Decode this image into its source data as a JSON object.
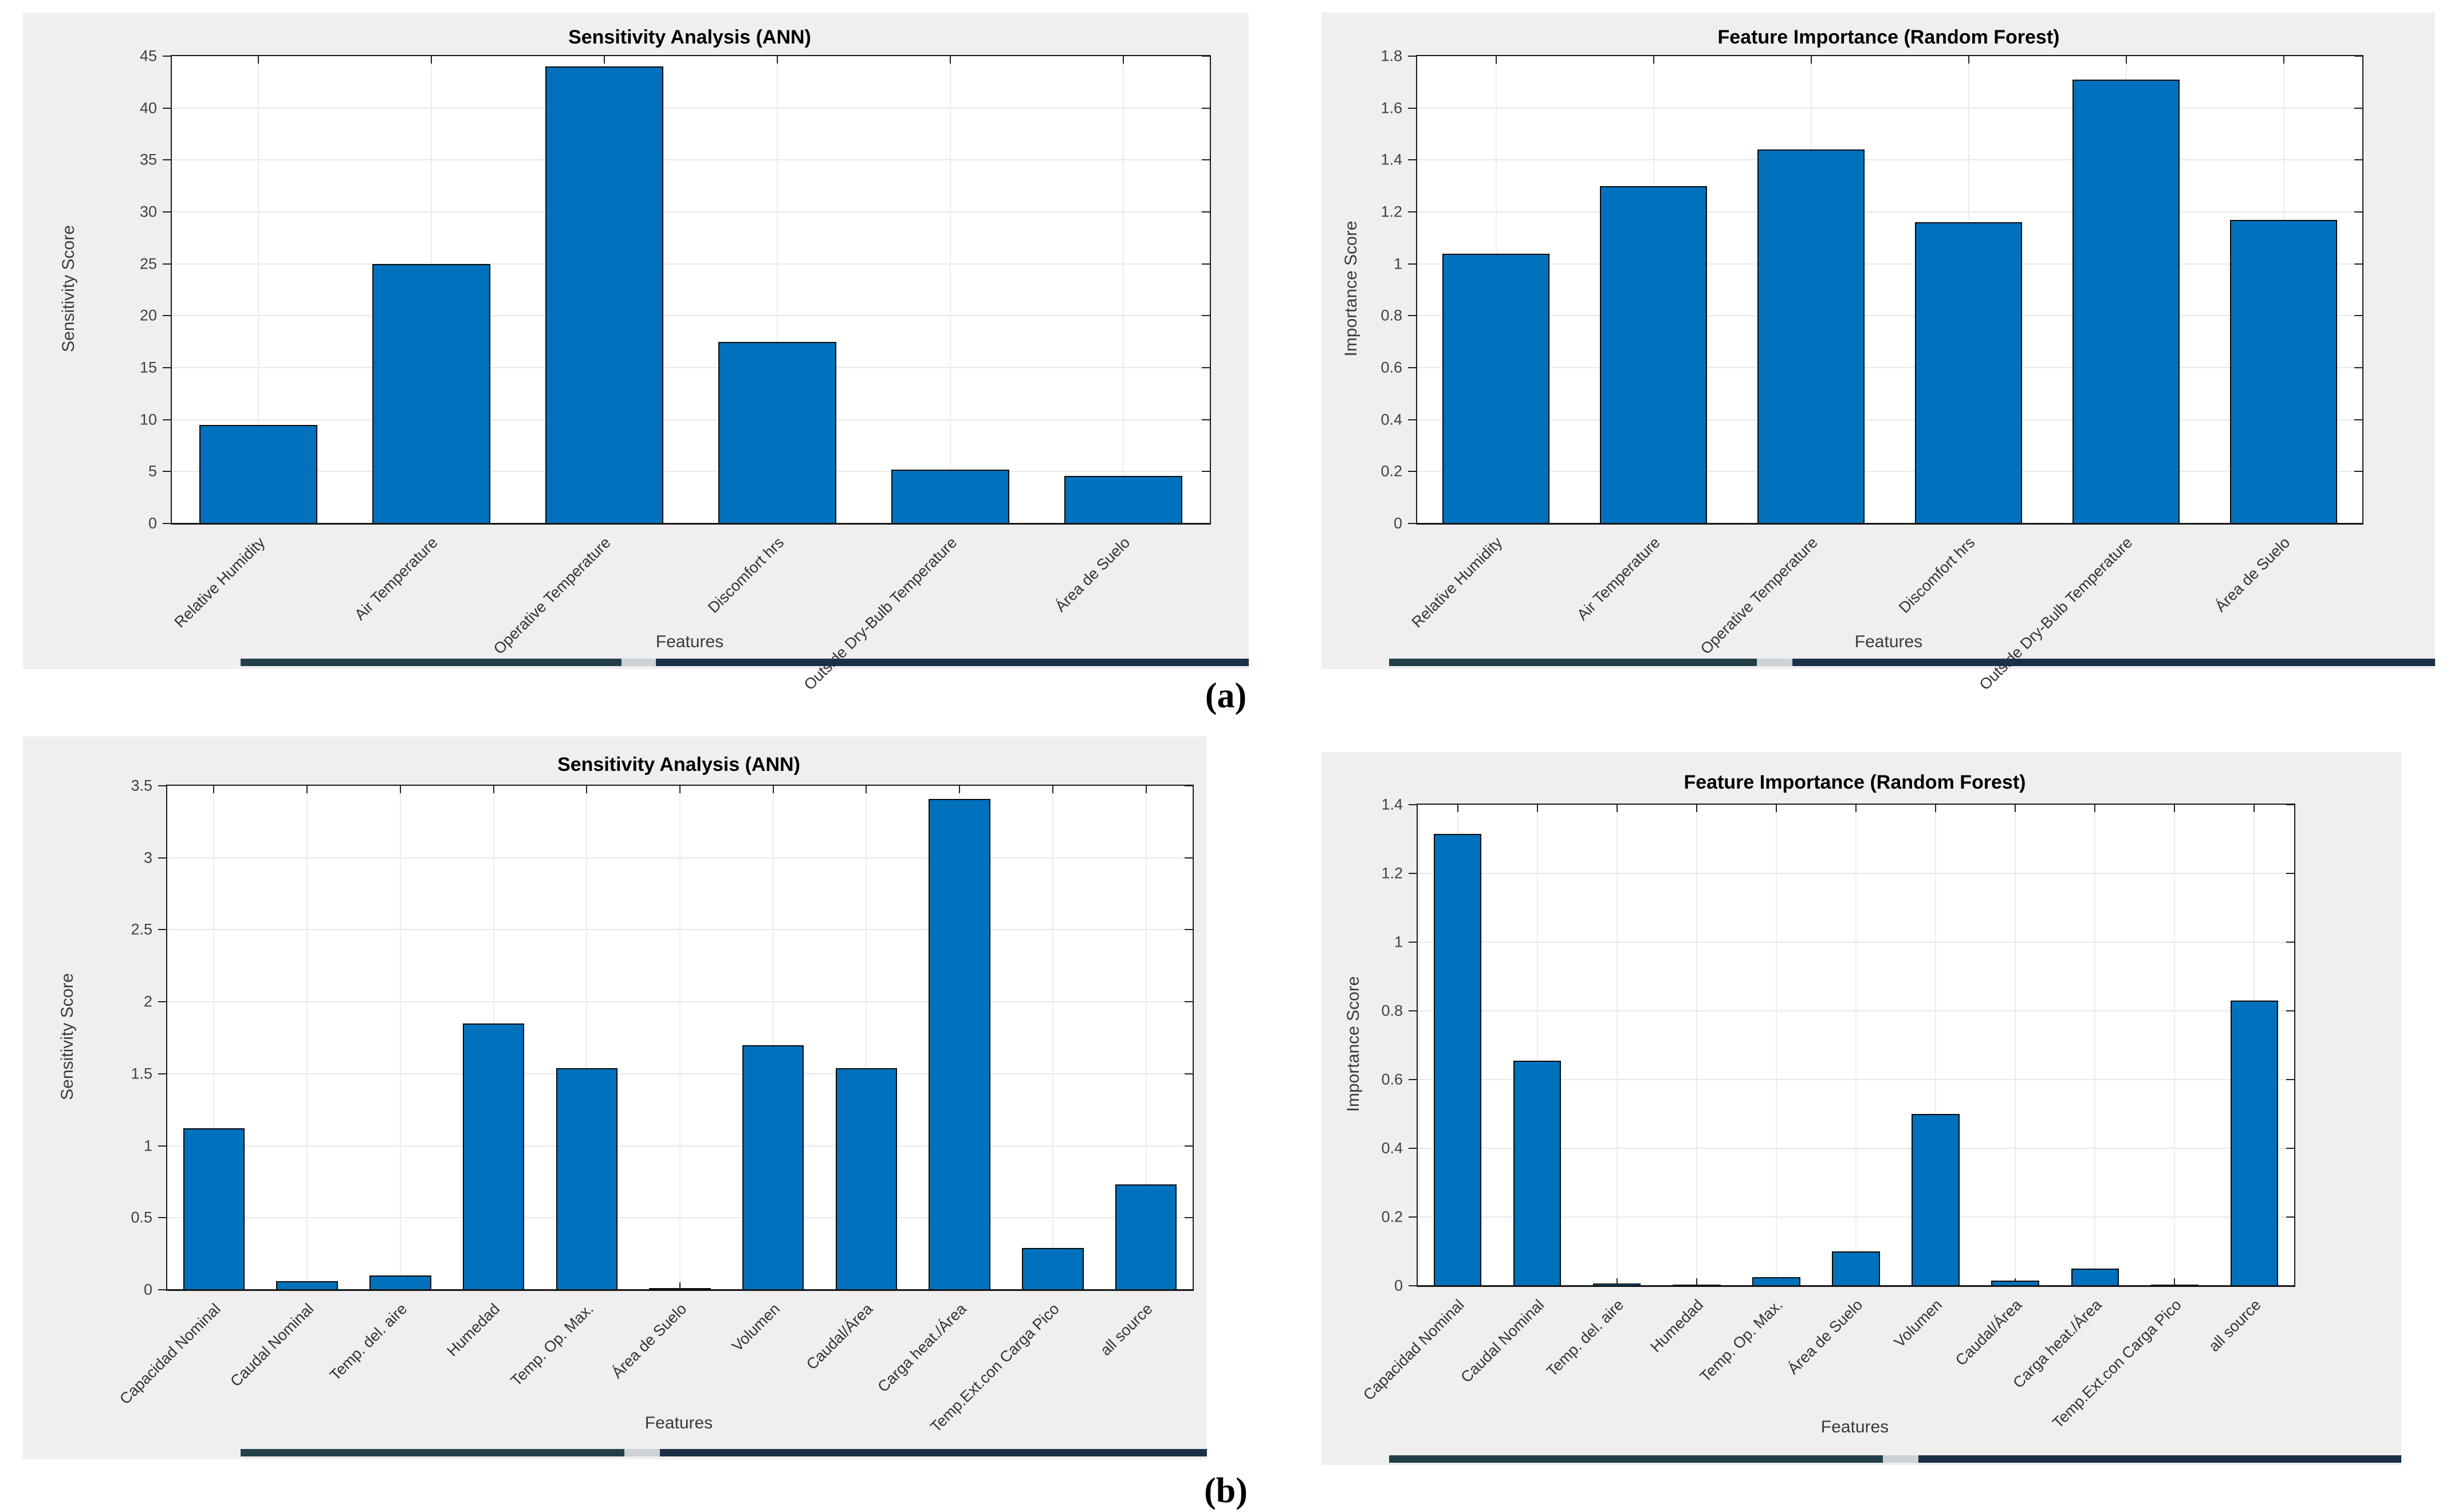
{
  "figure": {
    "label_a": "(a)",
    "label_b": "(b)",
    "bar_color": "#0072BD",
    "bar_edge_color": "#0a0a0a",
    "panel_bg": "#EFEFEF",
    "grid_color": "#E8E8E8",
    "strip_color_left": "#23404a",
    "strip_color_right": "#1b3048",
    "strip_gap_color": "#cdd2d6"
  },
  "chart_data": [
    {
      "type": "bar",
      "title": "Sensitivity Analysis (ANN)",
      "xlabel": "Features",
      "ylabel": "Sensitivity Score",
      "ylim": [
        0,
        45
      ],
      "grid": true,
      "legend": "none",
      "yticks": [
        "0",
        "5",
        "10",
        "15",
        "20",
        "25",
        "30",
        "35",
        "40",
        "45"
      ],
      "categories": [
        "Relative Humidity",
        "Air Temperature",
        "Operative Temperature",
        "Discomfort hrs",
        "Outside Dry-Bulb Temperature",
        "Área de Suelo"
      ],
      "values": [
        9.5,
        25,
        44,
        17.5,
        5.2,
        4.6
      ]
    },
    {
      "type": "bar",
      "title": "Feature Importance (Random Forest)",
      "xlabel": "Features",
      "ylabel": "Importance Score",
      "ylim": [
        0,
        1.8
      ],
      "grid": true,
      "legend": "none",
      "yticks": [
        "0",
        "0.2",
        "0.4",
        "0.6",
        "0.8",
        "1",
        "1.2",
        "1.4",
        "1.6",
        "1.8"
      ],
      "categories": [
        "Relative Humidity",
        "Air Temperature",
        "Operative Temperature",
        "Discomfort hrs",
        "Outside Dry-Bulb Temperature",
        "Área de Suelo"
      ],
      "values": [
        1.04,
        1.3,
        1.44,
        1.16,
        1.71,
        1.17
      ]
    },
    {
      "type": "bar",
      "title": "Sensitivity Analysis (ANN)",
      "xlabel": "Features",
      "ylabel": "Sensitivity Score",
      "ylim": [
        0,
        3.5
      ],
      "grid": true,
      "legend": "none",
      "yticks": [
        "0",
        "0.5",
        "1",
        "1.5",
        "2",
        "2.5",
        "3",
        "3.5"
      ],
      "categories": [
        "Capacidad Nominal",
        "Caudal Nominal",
        "Temp. del. aire",
        "Humedad",
        "Temp. Op. Max.",
        "Área de Suelo",
        "Volumen",
        "Caudal/Área",
        "Carga heat./Área",
        "Temp.Ext.con Carga Pico",
        "all source"
      ],
      "values": [
        1.12,
        0.06,
        0.1,
        1.85,
        1.54,
        0.012,
        1.7,
        1.54,
        3.41,
        0.29,
        0.73
      ]
    },
    {
      "type": "bar",
      "title": "Feature Importance (Random Forest)",
      "xlabel": "Features",
      "ylabel": "Importance Score",
      "ylim": [
        0,
        1.4
      ],
      "grid": true,
      "legend": "none",
      "yticks": [
        "0",
        "0.2",
        "0.4",
        "0.6",
        "0.8",
        "1",
        "1.2",
        "1.4"
      ],
      "categories": [
        "Capacidad Nominal",
        "Caudal Nominal",
        "Temp. del. aire",
        "Humedad",
        "Temp. Op. Max.",
        "Área de Suelo",
        "Volumen",
        "Caudal/Área",
        "Carga heat./Área",
        "Temp.Ext.con Carga Pico",
        "all source"
      ],
      "values": [
        1.315,
        0.655,
        0.006,
        0.001,
        0.025,
        0.1,
        0.5,
        0.015,
        0.05,
        0.004,
        0.83
      ]
    }
  ]
}
